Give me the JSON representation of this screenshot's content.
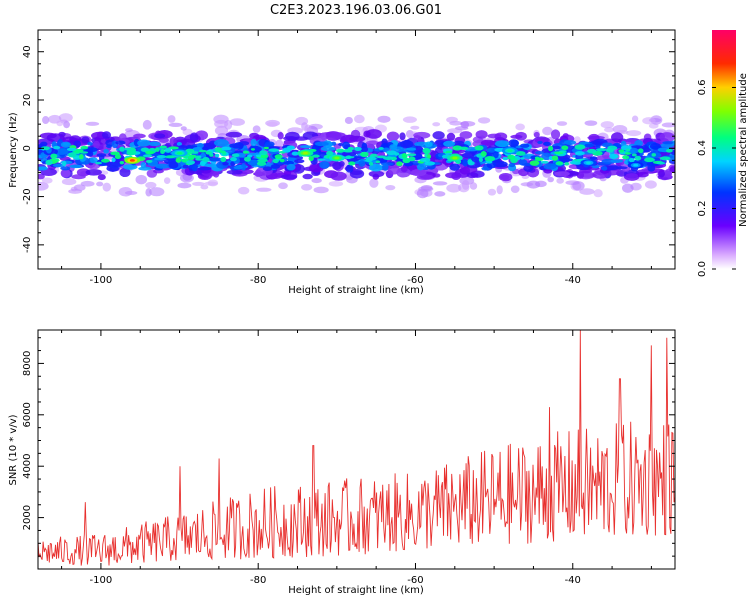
{
  "title": "C2E3.2023.196.03.06.G01",
  "chart_data": [
    {
      "type": "heatmap",
      "xlabel": "Height of straight line (km)",
      "ylabel": "Frequency (Hz)",
      "xlim": [
        -108,
        -27
      ],
      "ylim": [
        -50,
        49
      ],
      "xticks": [
        -100,
        -80,
        -60,
        -40
      ],
      "yticks": [
        -40,
        -20,
        0,
        20,
        40
      ],
      "x_tick_labels": [
        "-100",
        "-80",
        "-60",
        "-40"
      ],
      "y_tick_labels": [
        "-40",
        "-20",
        "0",
        "20",
        "40"
      ],
      "band_center_hz": -3,
      "band_halfwidth_hz": 10,
      "hotspots": [
        {
          "x": -96,
          "y": -5,
          "amp": 0.78
        },
        {
          "x": -90,
          "y": -2,
          "amp": 0.5
        },
        {
          "x": -74,
          "y": -2,
          "amp": 0.62
        },
        {
          "x": -70,
          "y": -4,
          "amp": 0.58
        },
        {
          "x": -55,
          "y": -4,
          "amp": 0.6
        },
        {
          "x": -48,
          "y": -1,
          "amp": 0.48
        },
        {
          "x": -38,
          "y": -6,
          "amp": 0.42
        },
        {
          "x": -32,
          "y": -7,
          "amp": 0.4
        }
      ],
      "colorbar": {
        "label": "Normalized spectral amplitude",
        "range": [
          0,
          0.79
        ],
        "ticks": [
          0.0,
          0.2,
          0.4,
          0.6
        ],
        "tick_labels": [
          "0.0",
          "0.2",
          "0.4",
          "0.6"
        ]
      }
    },
    {
      "type": "line",
      "xlabel": "Height of straight line (km)",
      "ylabel": "SNR (10 * v/v)",
      "xlim": [
        -108,
        -27
      ],
      "ylim": [
        0,
        9300
      ],
      "xticks": [
        -100,
        -80,
        -60,
        -40
      ],
      "yticks": [
        2000,
        4000,
        6000,
        8000
      ],
      "x_tick_labels": [
        "-100",
        "-80",
        "-60",
        "-40"
      ],
      "y_tick_labels": [
        "2000",
        "4000",
        "6000",
        "8000"
      ],
      "color": "#e8302e",
      "trend": [
        {
          "x": -108,
          "low": 200,
          "high": 1200
        },
        {
          "x": -100,
          "low": 100,
          "high": 1400
        },
        {
          "x": -90,
          "low": 300,
          "high": 2200
        },
        {
          "x": -80,
          "low": 400,
          "high": 3200
        },
        {
          "x": -70,
          "low": 500,
          "high": 3500
        },
        {
          "x": -60,
          "low": 700,
          "high": 3800
        },
        {
          "x": -50,
          "low": 900,
          "high": 4800
        },
        {
          "x": -40,
          "low": 1100,
          "high": 5500
        },
        {
          "x": -27,
          "low": 1300,
          "high": 6000
        }
      ],
      "peaks": [
        {
          "x": -39,
          "y": 9300
        },
        {
          "x": -30,
          "y": 8700
        },
        {
          "x": -28,
          "y": 9000
        },
        {
          "x": -34,
          "y": 7400
        },
        {
          "x": -43,
          "y": 6300
        },
        {
          "x": -73,
          "y": 4800
        },
        {
          "x": -85,
          "y": 4300
        },
        {
          "x": -90,
          "y": 4000
        },
        {
          "x": -102,
          "y": 2600
        },
        {
          "x": -108,
          "y": 1100
        }
      ]
    }
  ]
}
